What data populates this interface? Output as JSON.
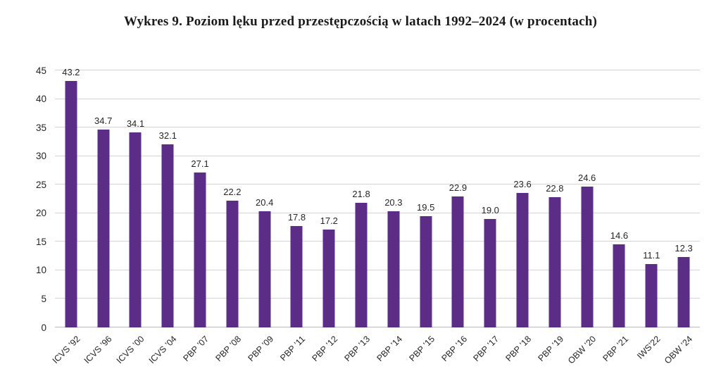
{
  "title": "Wykres 9. Poziom lęku przed przestępczością w latach 1992–2024 (w procentach)",
  "chart_data": {
    "type": "bar",
    "title": "Wykres 9. Poziom lęku przed przestępczością w latach 1992–2024 (w procentach)",
    "categories": [
      "ICVS ’92",
      "ICVS ’96",
      "ICVS ’00",
      "ICVS ’04",
      "PBP ’07",
      "PBP ’08",
      "PBP ’09",
      "PBP ’11",
      "PBP ’12",
      "PBP ’13",
      "PBP ’14",
      "PBP ’15",
      "PBP ’16",
      "PBP ’17",
      "PBP ’18",
      "PBP ’19",
      "OBW ’20",
      "PBP ’21",
      "IWS’22",
      "OBW ’24"
    ],
    "values": [
      43.2,
      34.7,
      34.1,
      32.1,
      27.1,
      22.2,
      20.4,
      17.8,
      17.2,
      21.8,
      20.3,
      19.5,
      22.9,
      19.0,
      23.6,
      22.8,
      24.6,
      14.6,
      11.1,
      12.3
    ],
    "xlabel": "",
    "ylabel": "",
    "ylim": [
      0,
      45
    ],
    "ytick_step": 5,
    "grid": true,
    "legend": false,
    "bar_color": "#5b2d87",
    "text_color": "#262626",
    "grid_color": "#d4d4d4"
  }
}
